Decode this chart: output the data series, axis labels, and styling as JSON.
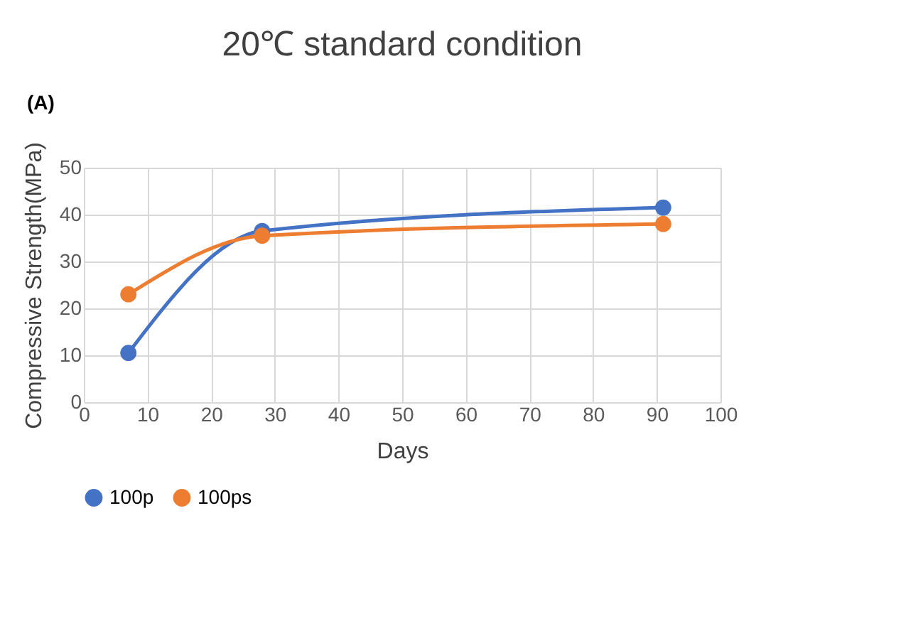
{
  "chart_data": {
    "type": "line",
    "title": "20℃ standard condition",
    "xlabel": "Days",
    "ylabel": "Compressive Strength(MPa)",
    "annotations": [
      "(A)"
    ],
    "series": [
      {
        "name": "100p",
        "color": "#4472c4",
        "x": [
          7,
          28,
          91
        ],
        "values": [
          10.5,
          36.5,
          41.5
        ]
      },
      {
        "name": "100ps",
        "color": "#ed7d31",
        "x": [
          7,
          28,
          91
        ],
        "values": [
          23,
          35.5,
          38
        ]
      }
    ],
    "xlim": [
      0,
      100
    ],
    "xticks": [
      0,
      10,
      20,
      30,
      40,
      50,
      60,
      70,
      80,
      90,
      100
    ],
    "ylim": [
      0,
      50
    ],
    "yticks": [
      0,
      10,
      20,
      30,
      40,
      50
    ],
    "grid": true,
    "legend": "bottom",
    "marker": "circle",
    "line_style": "solid"
  }
}
